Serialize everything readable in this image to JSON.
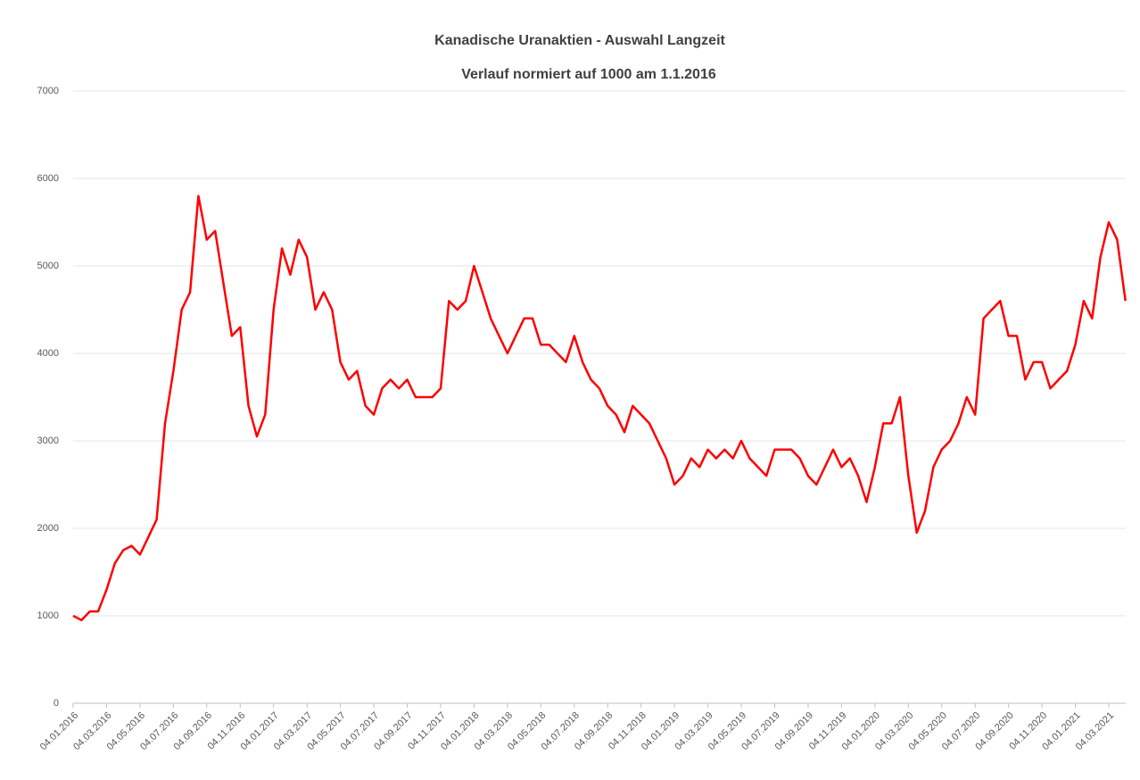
{
  "chart_data": {
    "type": "line",
    "title": "Kanadische Uranaktien - Auswahl Langzeit",
    "subtitle": "Verlauf normiert auf 1000 am 1.1.2016",
    "categories": [
      "04.01.2016",
      null,
      null,
      null,
      "04.03.2016",
      null,
      null,
      null,
      "04.05.2016",
      null,
      null,
      null,
      "04.07.2016",
      null,
      null,
      null,
      "04.09.2016",
      null,
      null,
      null,
      "04.11.2016",
      null,
      null,
      null,
      "04.01.2017",
      null,
      null,
      null,
      "04.03.2017",
      null,
      null,
      null,
      "04.05.2017",
      null,
      null,
      null,
      "04.07.2017",
      null,
      null,
      null,
      "04.09.2017",
      null,
      null,
      null,
      "04.11.2017",
      null,
      null,
      null,
      "04.01.2018",
      null,
      null,
      null,
      "04.03.2018",
      null,
      null,
      null,
      "04.05.2018",
      null,
      null,
      null,
      "04.07.2018",
      null,
      null,
      null,
      "04.09.2018",
      null,
      null,
      null,
      "04.11.2018",
      null,
      null,
      null,
      "04.01.2019",
      null,
      null,
      null,
      "04.03.2019",
      null,
      null,
      null,
      "04.05.2019",
      null,
      null,
      null,
      "04.07.2019",
      null,
      null,
      null,
      "04.09.2019",
      null,
      null,
      null,
      "04.11.2019",
      null,
      null,
      null,
      "04.01.2020",
      null,
      null,
      null,
      "04.03.2020",
      null,
      null,
      null,
      "04.05.2020",
      null,
      null,
      null,
      "04.07.2020",
      null,
      null,
      null,
      "04.09.2020",
      null,
      null,
      null,
      "04.11.2020",
      null,
      null,
      null,
      "04.01.2021",
      null,
      null,
      null,
      "04.03.2021",
      null,
      null
    ],
    "values": [
      1000,
      950,
      1050,
      1050,
      1300,
      1600,
      1750,
      1800,
      1700,
      1900,
      2100,
      3200,
      3800,
      4500,
      4700,
      5800,
      5300,
      5400,
      4800,
      4200,
      4300,
      3400,
      3050,
      3300,
      4500,
      5200,
      4900,
      5300,
      5100,
      4500,
      4700,
      4500,
      3900,
      3700,
      3800,
      3400,
      3300,
      3600,
      3700,
      3600,
      3700,
      3500,
      3500,
      3500,
      3600,
      4600,
      4500,
      4600,
      5000,
      4700,
      4400,
      4200,
      4000,
      4200,
      4400,
      4400,
      4100,
      4100,
      4000,
      3900,
      4200,
      3900,
      3700,
      3600,
      3400,
      3300,
      3100,
      3400,
      3300,
      3200,
      3000,
      2800,
      2500,
      2600,
      2800,
      2700,
      2900,
      2800,
      2900,
      2800,
      3000,
      2800,
      2700,
      2600,
      2900,
      2900,
      2900,
      2800,
      2600,
      2500,
      2700,
      2900,
      2700,
      2800,
      2600,
      2300,
      2700,
      3200,
      3200,
      3500,
      2600,
      1950,
      2200,
      2700,
      2900,
      3000,
      3200,
      3500,
      3300,
      4400,
      4500,
      4600,
      4200,
      4200,
      3700,
      3900,
      3900,
      3600,
      3700,
      3800,
      4100,
      4600,
      4400,
      5100,
      5500,
      5300,
      4600
    ],
    "color": "#ff0000",
    "ylim": [
      0,
      7000
    ],
    "yticks": [
      0,
      1000,
      2000,
      3000,
      4000,
      5000,
      6000,
      7000
    ],
    "grid": true
  }
}
